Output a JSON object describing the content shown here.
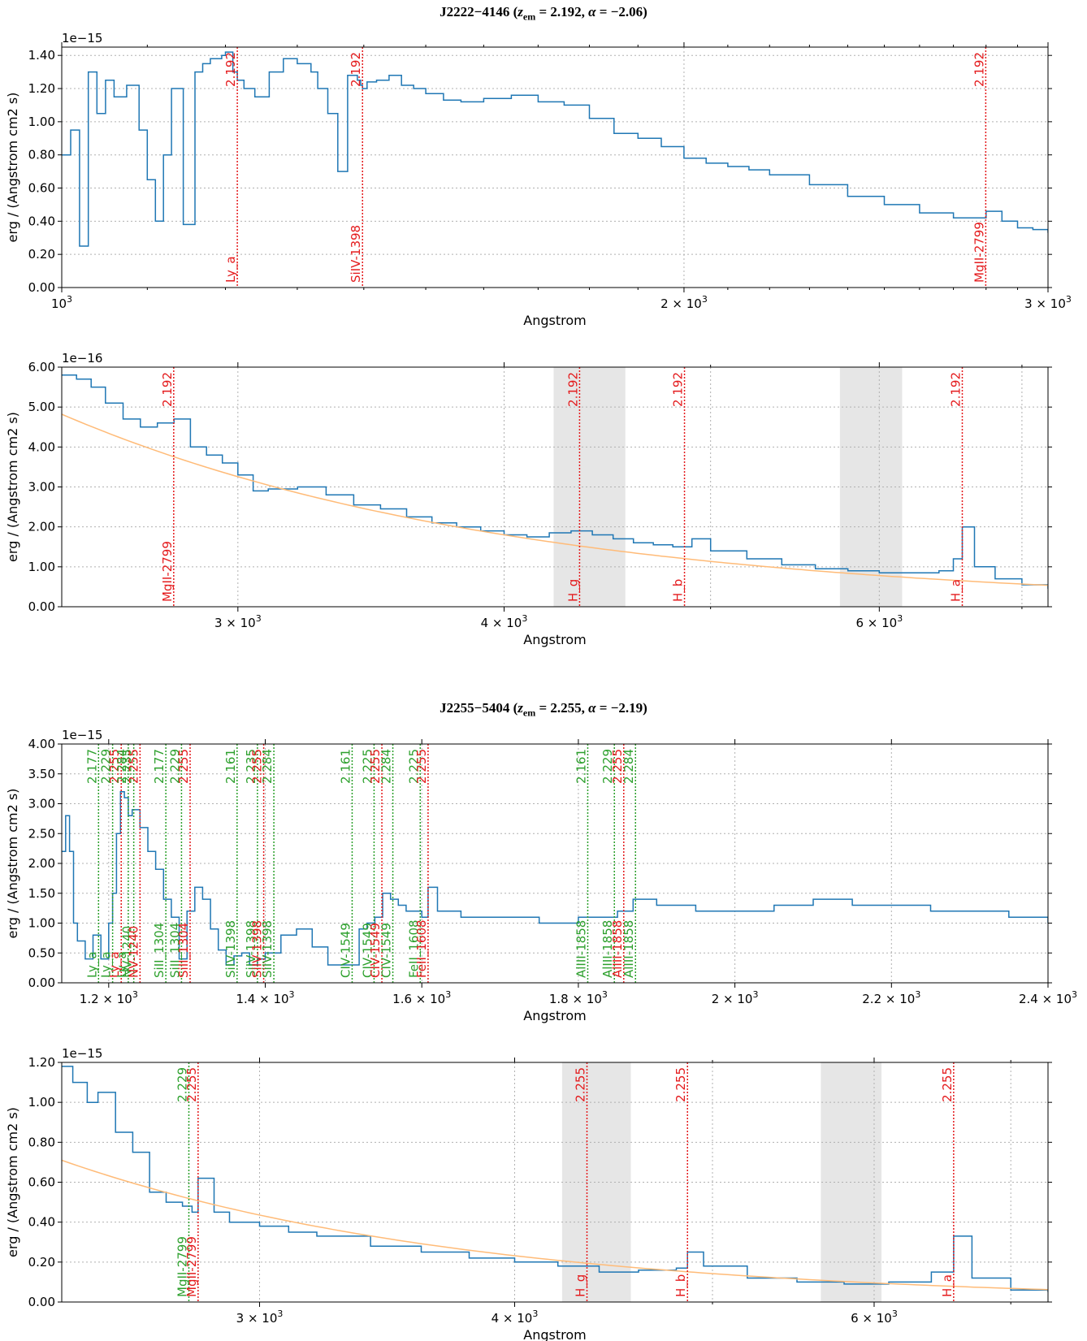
{
  "titles": [
    {
      "object": "J2222−4146",
      "z_label": "z",
      "z_sub": "em",
      "z_value": "2.192",
      "alpha_label": "α",
      "alpha_value": "−2.06"
    },
    {
      "object": "J2255−5404",
      "z_label": "z",
      "z_sub": "em",
      "z_value": "2.255",
      "alpha_label": "α",
      "alpha_value": "−2.19"
    }
  ],
  "colors": {
    "spectrum": "#1f77b4",
    "fit": "#ffbb78",
    "line_red": "#e41a1c",
    "line_green": "#2ca02c",
    "band": "#e6e6e6"
  },
  "chart_data": [
    {
      "type": "line",
      "xscale": "log",
      "xlim": [
        1000,
        3000
      ],
      "ylim": [
        0,
        1.45
      ],
      "multiplier": "1e−15",
      "xlabel": "Angstrom",
      "ylabel": "erg / (Angstrom cm2 s)",
      "yticks": [
        0,
        0.2,
        0.4,
        0.6,
        0.8,
        1.0,
        1.2,
        1.4
      ],
      "yticklabels": [
        "0.00",
        "0.20",
        "0.40",
        "0.60",
        "0.80",
        "1.00",
        "1.20",
        "1.40"
      ],
      "xticks": [
        {
          "v": 1000,
          "m": "10",
          "e": "3"
        },
        {
          "v": 2000,
          "m": "2 × 10",
          "e": "3"
        },
        {
          "v": 3000,
          "m": "3 × 10",
          "e": "3"
        }
      ],
      "minor_xticks": [
        1100,
        1200,
        1300,
        1400,
        1500,
        1600,
        1700,
        1800,
        1900,
        2100,
        2200,
        2300,
        2400,
        2500,
        2600,
        2700,
        2800,
        2900
      ],
      "grid_x": [
        2000
      ],
      "bands": [],
      "lines": [
        {
          "x": 1216,
          "label": "Ly_a",
          "z": "2.192",
          "color": "red"
        },
        {
          "x": 1398,
          "label": "SiIV-1398",
          "z": "2.192",
          "color": "red"
        },
        {
          "x": 2799,
          "label": "MgII-2799",
          "z": "2.192",
          "color": "red"
        }
      ],
      "series": [
        {
          "x": [
            1000,
            1010,
            1020,
            1030,
            1040,
            1050,
            1060,
            1075,
            1090,
            1100,
            1110,
            1120,
            1130,
            1145,
            1160,
            1170,
            1180,
            1195,
            1200,
            1210,
            1216,
            1225,
            1240,
            1260,
            1280,
            1300,
            1320,
            1330,
            1345,
            1360,
            1375,
            1390,
            1395,
            1398,
            1405,
            1420,
            1440,
            1460,
            1480,
            1500,
            1530,
            1560,
            1600,
            1650,
            1700,
            1750,
            1800,
            1850,
            1900,
            1950,
            2000,
            2050,
            2100,
            2150,
            2200,
            2300,
            2400,
            2500,
            2600,
            2700,
            2800,
            2850,
            2900,
            2950,
            3000
          ],
          "y": [
            0.8,
            0.95,
            0.25,
            1.3,
            1.05,
            1.25,
            1.15,
            1.22,
            0.95,
            0.65,
            0.4,
            0.8,
            1.2,
            0.38,
            1.3,
            1.35,
            1.38,
            1.4,
            1.42,
            1.3,
            1.25,
            1.2,
            1.15,
            1.3,
            1.38,
            1.35,
            1.3,
            1.2,
            1.05,
            0.7,
            1.28,
            1.25,
            1.22,
            1.2,
            1.24,
            1.25,
            1.28,
            1.22,
            1.2,
            1.17,
            1.13,
            1.12,
            1.14,
            1.16,
            1.12,
            1.1,
            1.02,
            0.93,
            0.9,
            0.85,
            0.78,
            0.75,
            0.73,
            0.71,
            0.68,
            0.62,
            0.55,
            0.5,
            0.45,
            0.42,
            0.46,
            0.4,
            0.36,
            0.35,
            0.33
          ]
        }
      ]
    },
    {
      "type": "line",
      "xscale": "log",
      "xlim": [
        2480,
        7200
      ],
      "ylim": [
        0,
        6.0
      ],
      "multiplier": "1e−16",
      "xlabel": "Angstrom",
      "ylabel": "erg / (Angstrom cm2 s)",
      "yticks": [
        0,
        1,
        2,
        3,
        4,
        5,
        6
      ],
      "yticklabels": [
        "0.00",
        "1.00",
        "2.00",
        "3.00",
        "4.00",
        "5.00",
        "6.00"
      ],
      "xticks": [
        {
          "v": 3000,
          "m": "3 × 10",
          "e": "3"
        },
        {
          "v": 4000,
          "m": "4 × 10",
          "e": "3"
        },
        {
          "v": 6000,
          "m": "6 × 10",
          "e": "3"
        }
      ],
      "minor_xticks": [
        5000,
        7000
      ],
      "grid_x": [
        3000,
        4000,
        5000,
        6000,
        7000
      ],
      "bands": [
        [
          4220,
          4560
        ],
        [
          5750,
          6150
        ]
      ],
      "lines": [
        {
          "x": 2799,
          "label": "MgII-2799",
          "z": "2.192",
          "color": "red"
        },
        {
          "x": 4340,
          "label": "H_g",
          "z": "2.192",
          "color": "red"
        },
        {
          "x": 4861,
          "label": "H_b",
          "z": "2.192",
          "color": "red"
        },
        {
          "x": 6563,
          "label": "H_a",
          "z": "2.192",
          "color": "red"
        }
      ],
      "fit": {
        "norm": 4.82,
        "x0": 2480,
        "alpha": -2.06
      },
      "series": [
        {
          "x": [
            2480,
            2520,
            2560,
            2600,
            2650,
            2700,
            2750,
            2800,
            2850,
            2900,
            2950,
            3000,
            3050,
            3100,
            3200,
            3300,
            3400,
            3500,
            3600,
            3700,
            3800,
            3900,
            4000,
            4100,
            4200,
            4300,
            4400,
            4500,
            4600,
            4700,
            4800,
            4900,
            5000,
            5200,
            5400,
            5600,
            5800,
            6000,
            6200,
            6400,
            6500,
            6563,
            6650,
            6800,
            7000,
            7200
          ],
          "y": [
            5.8,
            5.7,
            5.5,
            5.1,
            4.7,
            4.5,
            4.6,
            4.7,
            4.0,
            3.8,
            3.6,
            3.3,
            2.9,
            2.95,
            3.0,
            2.8,
            2.55,
            2.45,
            2.25,
            2.1,
            2.0,
            1.9,
            1.8,
            1.75,
            1.85,
            1.9,
            1.8,
            1.7,
            1.6,
            1.55,
            1.5,
            1.7,
            1.4,
            1.2,
            1.05,
            0.95,
            0.9,
            0.85,
            0.85,
            0.9,
            1.2,
            2.0,
            1.0,
            0.7,
            0.55,
            0.45
          ]
        }
      ]
    },
    {
      "type": "line",
      "xscale": "linear",
      "xlim": [
        1140,
        2400
      ],
      "ylim": [
        0,
        4.0
      ],
      "multiplier": "1e−15",
      "xlabel": "Angstrom",
      "ylabel": "erg / (Angstrom cm2 s)",
      "yticks": [
        0,
        0.5,
        1.0,
        1.5,
        2.0,
        2.5,
        3.0,
        3.5,
        4.0
      ],
      "yticklabels": [
        "0.00",
        "0.50",
        "1.00",
        "1.50",
        "2.00",
        "2.50",
        "3.00",
        "3.50",
        "4.00"
      ],
      "xticks": [
        {
          "v": 1200,
          "m": "1.2 × 10",
          "e": "3"
        },
        {
          "v": 1400,
          "m": "1.4 × 10",
          "e": "3"
        },
        {
          "v": 1600,
          "m": "1.6 × 10",
          "e": "3"
        },
        {
          "v": 1800,
          "m": "1.8 × 10",
          "e": "3"
        },
        {
          "v": 2000,
          "m": "2 × 10",
          "e": "3"
        },
        {
          "v": 2200,
          "m": "2.2 × 10",
          "e": "3"
        },
        {
          "v": 2400,
          "m": "2.4 × 10",
          "e": "3"
        }
      ],
      "minor_xticks": [],
      "grid_x": [
        1200,
        1400,
        1600,
        1800,
        2000,
        2200
      ],
      "bands": [],
      "lines": [
        {
          "x": 1187,
          "label": "Ly_a",
          "z": "2.177",
          "color": "green"
        },
        {
          "x": 1205,
          "label": "Ly_a",
          "z": "2.229",
          "color": "green"
        },
        {
          "x": 1216,
          "label": "Ly_a",
          "z": "2.255",
          "color": "red"
        },
        {
          "x": 1225,
          "label": "Ly_a",
          "z": "2.284",
          "color": "green"
        },
        {
          "x": 1232,
          "label": "NV-1240",
          "z": "2.235",
          "color": "green"
        },
        {
          "x": 1240,
          "label": "NV-1240",
          "z": "2.255",
          "color": "red"
        },
        {
          "x": 1273,
          "label": "SiII_1304",
          "z": "2.177",
          "color": "green"
        },
        {
          "x": 1293,
          "label": "SiII_1304",
          "z": "2.229",
          "color": "green"
        },
        {
          "x": 1304,
          "label": "SiII_1304",
          "z": "2.255",
          "color": "red"
        },
        {
          "x": 1364,
          "label": "SiIV-1398",
          "z": "2.161",
          "color": "green"
        },
        {
          "x": 1390,
          "label": "SiIV-1398",
          "z": "2.235",
          "color": "green"
        },
        {
          "x": 1398,
          "label": "SiIV-1398",
          "z": "2.255",
          "color": "red"
        },
        {
          "x": 1411,
          "label": "SiIV-1398",
          "z": "2.284",
          "color": "green"
        },
        {
          "x": 1511,
          "label": "CIV-1549",
          "z": "2.161",
          "color": "green"
        },
        {
          "x": 1539,
          "label": "CIV-1549",
          "z": "2.225",
          "color": "green"
        },
        {
          "x": 1549,
          "label": "CIV-1549",
          "z": "2.255",
          "color": "red"
        },
        {
          "x": 1563,
          "label": "CIV-1549",
          "z": "2.284",
          "color": "green"
        },
        {
          "x": 1598,
          "label": "FeII_1608",
          "z": "2.225",
          "color": "green"
        },
        {
          "x": 1608,
          "label": "FeII_1608",
          "z": "2.255",
          "color": "red"
        },
        {
          "x": 1812,
          "label": "AlIII-1858",
          "z": "2.161",
          "color": "green"
        },
        {
          "x": 1846,
          "label": "AlIII-1858",
          "z": "2.229",
          "color": "green"
        },
        {
          "x": 1858,
          "label": "AlIII-1858",
          "z": "2.255",
          "color": "red"
        },
        {
          "x": 1873,
          "label": "AlIII-1858",
          "z": "2.284",
          "color": "green"
        }
      ],
      "series": [
        {
          "x": [
            1140,
            1145,
            1150,
            1155,
            1160,
            1170,
            1180,
            1190,
            1200,
            1205,
            1210,
            1215,
            1220,
            1225,
            1230,
            1240,
            1250,
            1260,
            1270,
            1280,
            1290,
            1300,
            1310,
            1320,
            1330,
            1340,
            1350,
            1360,
            1370,
            1380,
            1390,
            1400,
            1420,
            1440,
            1460,
            1480,
            1500,
            1520,
            1530,
            1540,
            1550,
            1560,
            1570,
            1580,
            1590,
            1600,
            1608,
            1620,
            1650,
            1700,
            1750,
            1800,
            1850,
            1870,
            1900,
            1950,
            2000,
            2050,
            2100,
            2150,
            2200,
            2250,
            2300,
            2350,
            2400
          ],
          "y": [
            2.2,
            2.8,
            2.2,
            1.0,
            0.7,
            0.4,
            0.8,
            0.4,
            1.0,
            1.5,
            2.5,
            3.2,
            3.1,
            2.8,
            2.9,
            2.6,
            2.2,
            1.9,
            1.4,
            1.1,
            0.4,
            1.2,
            1.6,
            1.4,
            0.9,
            0.55,
            0.3,
            0.45,
            0.5,
            0.3,
            0.4,
            0.5,
            0.8,
            0.9,
            0.6,
            0.3,
            0.3,
            0.9,
            1.0,
            1.1,
            1.5,
            1.4,
            1.3,
            1.2,
            1.2,
            1.1,
            1.6,
            1.2,
            1.1,
            1.1,
            1.0,
            1.1,
            1.2,
            1.4,
            1.3,
            1.2,
            1.2,
            1.3,
            1.4,
            1.3,
            1.3,
            1.2,
            1.2,
            1.1,
            1.0
          ]
        }
      ]
    },
    {
      "type": "line",
      "xscale": "log",
      "xlim": [
        2400,
        7300
      ],
      "ylim": [
        0,
        1.2
      ],
      "multiplier": "1e−15",
      "xlabel": "Angstrom",
      "ylabel": "erg / (Angstrom cm2 s)",
      "yticks": [
        0,
        0.2,
        0.4,
        0.6,
        0.8,
        1.0,
        1.2
      ],
      "yticklabels": [
        "0.00",
        "0.20",
        "0.40",
        "0.60",
        "0.80",
        "1.00",
        "1.20"
      ],
      "xticks": [
        {
          "v": 3000,
          "m": "3 × 10",
          "e": "3"
        },
        {
          "v": 4000,
          "m": "4 × 10",
          "e": "3"
        },
        {
          "v": 6000,
          "m": "6 × 10",
          "e": "3"
        }
      ],
      "minor_xticks": [
        5000,
        7000
      ],
      "grid_x": [
        3000,
        4000,
        5000,
        6000,
        7000
      ],
      "bands": [
        [
          4220,
          4560
        ],
        [
          5650,
          6050
        ]
      ],
      "lines": [
        {
          "x": 2770,
          "label": "MgII-2799",
          "z": "2.229",
          "color": "green"
        },
        {
          "x": 2799,
          "label": "MgII-2799",
          "z": "2.255",
          "color": "red"
        },
        {
          "x": 4340,
          "label": "H_g",
          "z": "2.255",
          "color": "red"
        },
        {
          "x": 4861,
          "label": "H_b",
          "z": "2.255",
          "color": "red"
        },
        {
          "x": 6563,
          "label": "H_a",
          "z": "2.255",
          "color": "red"
        }
      ],
      "fit": {
        "norm": 0.71,
        "x0": 2400,
        "alpha": -2.19
      },
      "series": [
        {
          "x": [
            2400,
            2430,
            2470,
            2500,
            2550,
            2600,
            2650,
            2700,
            2750,
            2780,
            2799,
            2850,
            2900,
            3000,
            3100,
            3200,
            3400,
            3600,
            3800,
            4000,
            4200,
            4400,
            4600,
            4800,
            4861,
            4950,
            5200,
            5500,
            5800,
            6100,
            6400,
            6563,
            6700,
            7000,
            7300
          ],
          "y": [
            1.18,
            1.1,
            1.0,
            1.05,
            0.85,
            0.75,
            0.55,
            0.5,
            0.48,
            0.45,
            0.62,
            0.45,
            0.4,
            0.38,
            0.35,
            0.33,
            0.28,
            0.25,
            0.22,
            0.2,
            0.18,
            0.15,
            0.16,
            0.17,
            0.25,
            0.18,
            0.12,
            0.1,
            0.09,
            0.1,
            0.15,
            0.33,
            0.12,
            0.06,
            0.05
          ]
        }
      ]
    }
  ],
  "panels_layout_note": ""
}
